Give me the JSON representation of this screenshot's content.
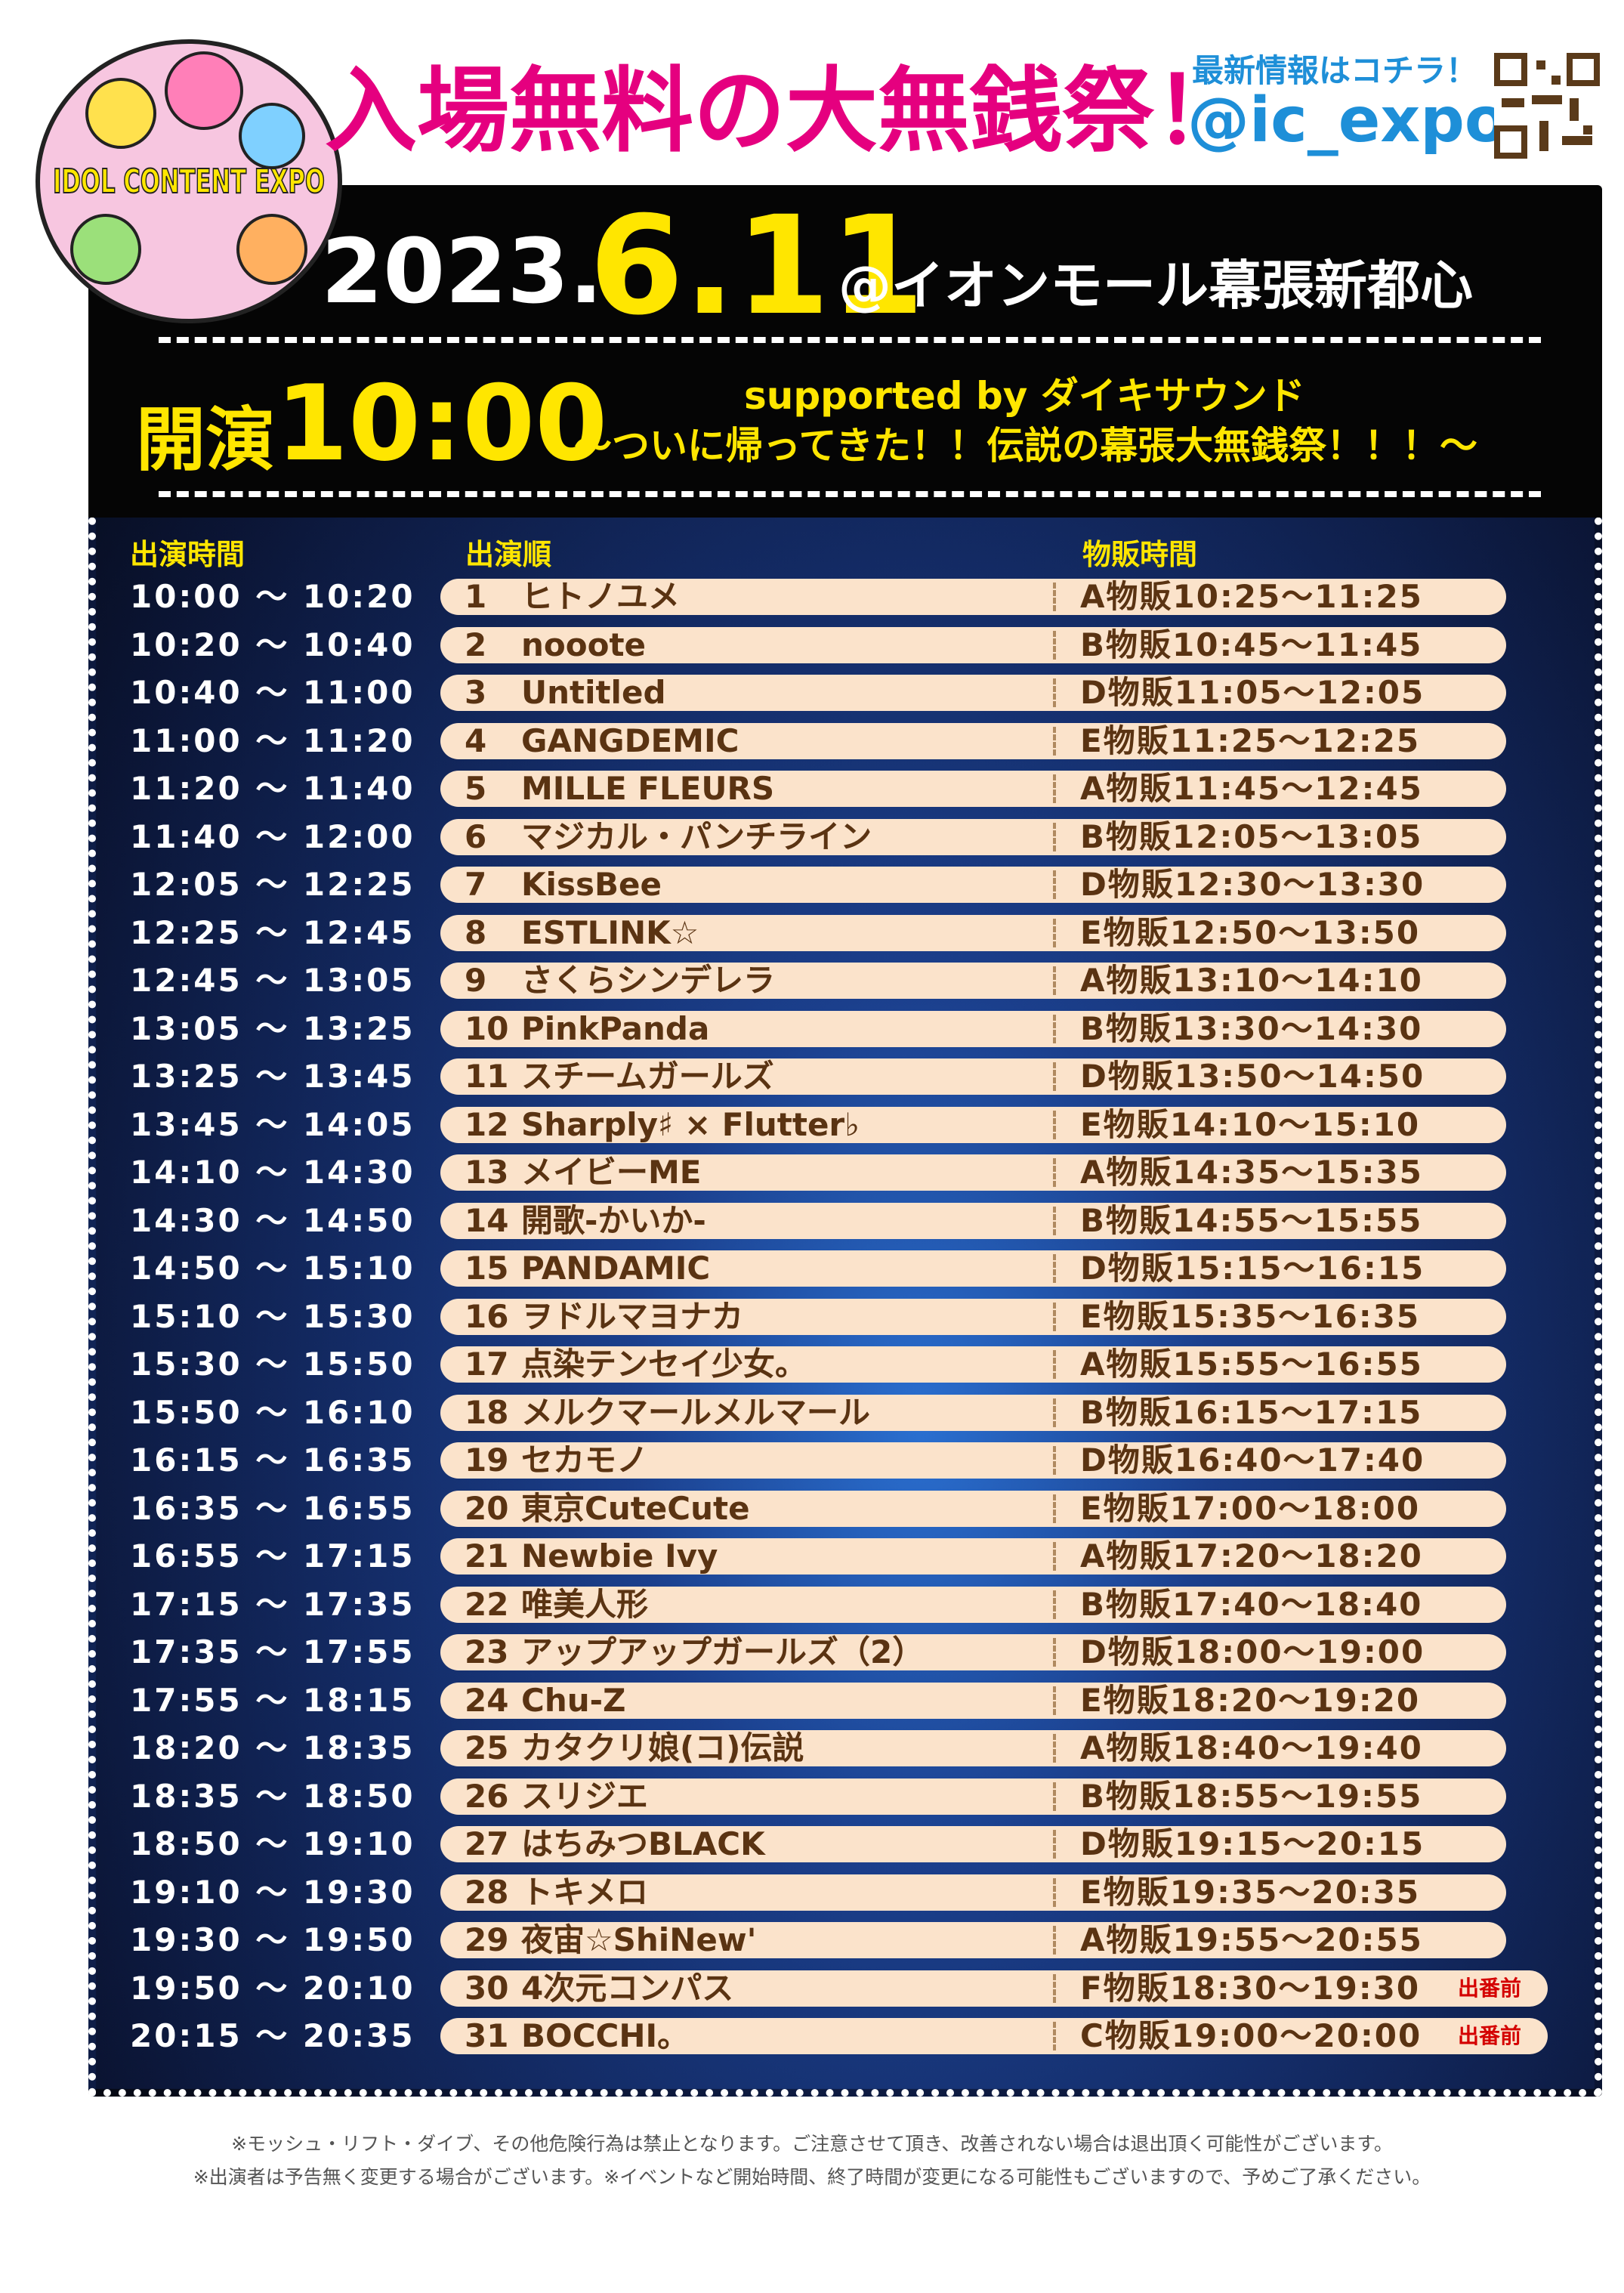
{
  "header": {
    "logo": "IDOL CONTENT EXPO",
    "title": "入場無料の大無銭祭！",
    "info_label": "最新情報はコチラ！",
    "handle": "@ic_expo"
  },
  "event": {
    "date_prefix": "2023.",
    "date_main": "6.11",
    "venue": "@イオンモール幕張新都心",
    "start_label": "開演",
    "start_time": "10:00",
    "sponsor": "supported by ダイキサウンド",
    "subtitle": "～ついに帰ってきた！！伝説の幕張大無銭祭！！！～"
  },
  "table": {
    "headers": [
      "出演時間",
      "出演順",
      "物販時間"
    ],
    "rows": [
      {
        "time": "10:00 ～ 10:20",
        "order": "1",
        "name": "ヒトノユメ",
        "merch": "A物販10:25～11:25"
      },
      {
        "time": "10:20 ～ 10:40",
        "order": "2",
        "name": "nooote",
        "merch": "B物販10:45～11:45"
      },
      {
        "time": "10:40 ～ 11:00",
        "order": "3",
        "name": "Untitled",
        "merch": "D物販11:05～12:05"
      },
      {
        "time": "11:00 ～ 11:20",
        "order": "4",
        "name": "GANGDEMIC",
        "merch": "E物販11:25～12:25"
      },
      {
        "time": "11:20 ～ 11:40",
        "order": "5",
        "name": "MILLE FLEURS",
        "merch": "A物販11:45～12:45"
      },
      {
        "time": "11:40 ～ 12:00",
        "order": "6",
        "name": "マジカル・パンチライン",
        "merch": "B物販12:05～13:05"
      },
      {
        "time": "12:05 ～ 12:25",
        "order": "7",
        "name": "KissBee",
        "merch": "D物販12:30～13:30"
      },
      {
        "time": "12:25 ～ 12:45",
        "order": "8",
        "name": "ESTLINK☆",
        "merch": "E物販12:50～13:50"
      },
      {
        "time": "12:45 ～ 13:05",
        "order": "9",
        "name": "さくらシンデレラ",
        "merch": "A物販13:10～14:10"
      },
      {
        "time": "13:05 ～ 13:25",
        "order": "10",
        "name": "PinkPanda",
        "merch": "B物販13:30～14:30"
      },
      {
        "time": "13:25 ～ 13:45",
        "order": "11",
        "name": "スチームガールズ",
        "merch": "D物販13:50～14:50"
      },
      {
        "time": "13:45 ～ 14:05",
        "order": "12",
        "name": "Sharply♯ × Flutter♭",
        "merch": "E物販14:10～15:10"
      },
      {
        "time": "14:10 ～ 14:30",
        "order": "13",
        "name": "メイビーME",
        "merch": "A物販14:35～15:35"
      },
      {
        "time": "14:30 ～ 14:50",
        "order": "14",
        "name": "開歌-かいか-",
        "merch": "B物販14:55～15:55"
      },
      {
        "time": "14:50 ～ 15:10",
        "order": "15",
        "name": "PANDAMIC",
        "merch": "D物販15:15～16:15"
      },
      {
        "time": "15:10 ～ 15:30",
        "order": "16",
        "name": "ヲドルマヨナカ",
        "merch": "E物販15:35～16:35"
      },
      {
        "time": "15:30 ～ 15:50",
        "order": "17",
        "name": "点染テンセイ少女。",
        "merch": "A物販15:55～16:55"
      },
      {
        "time": "15:50 ～ 16:10",
        "order": "18",
        "name": "メルクマールメルマール",
        "merch": "B物販16:15～17:15"
      },
      {
        "time": "16:15 ～ 16:35",
        "order": "19",
        "name": "セカモノ",
        "merch": "D物販16:40～17:40"
      },
      {
        "time": "16:35 ～ 16:55",
        "order": "20",
        "name": "東京CuteCute",
        "merch": "E物販17:00～18:00"
      },
      {
        "time": "16:55 ～ 17:15",
        "order": "21",
        "name": "Newbie Ivy",
        "merch": "A物販17:20～18:20"
      },
      {
        "time": "17:15 ～ 17:35",
        "order": "22",
        "name": "唯美人形",
        "merch": "B物販17:40～18:40"
      },
      {
        "time": "17:35 ～ 17:55",
        "order": "23",
        "name": "アップアップガールズ（2）",
        "merch": "D物販18:00～19:00"
      },
      {
        "time": "17:55 ～ 18:15",
        "order": "24",
        "name": "Chu-Z",
        "merch": "E物販18:20～19:20"
      },
      {
        "time": "18:20 ～ 18:35",
        "order": "25",
        "name": "カタクリ娘(コ)伝説",
        "merch": "A物販18:40～19:40"
      },
      {
        "time": "18:35 ～ 18:50",
        "order": "26",
        "name": "スリジエ",
        "merch": "B物販18:55～19:55"
      },
      {
        "time": "18:50 ～ 19:10",
        "order": "27",
        "name": "はちみつBLACK",
        "merch": "D物販19:15～20:15"
      },
      {
        "time": "19:10 ～ 19:30",
        "order": "28",
        "name": "トキメロ",
        "merch": "E物販19:35～20:35"
      },
      {
        "time": "19:30 ～ 19:50",
        "order": "29",
        "name": "夜宙☆ShiNew'",
        "merch": "A物販19:55～20:55"
      },
      {
        "time": "19:50 ～ 20:10",
        "order": "30",
        "name": "4次元コンパス",
        "merch": "F物販18:30～19:30",
        "note": "出番前"
      },
      {
        "time": "20:15 ～ 20:35",
        "order": "31",
        "name": "BOCCHI。",
        "merch": "C物販19:00～20:00",
        "note": "出番前"
      }
    ]
  },
  "notes": [
    "※モッシュ・リフト・ダイブ、その他危険行為は禁止となります。ご注意させて頂き、改善されない場合は退出頂く可能性がございます。",
    "※出演者は予告無く変更する場合がございます。※イベントなど開始時間、終了時間が変更になる可能性もございますので、予めご了承ください。"
  ]
}
